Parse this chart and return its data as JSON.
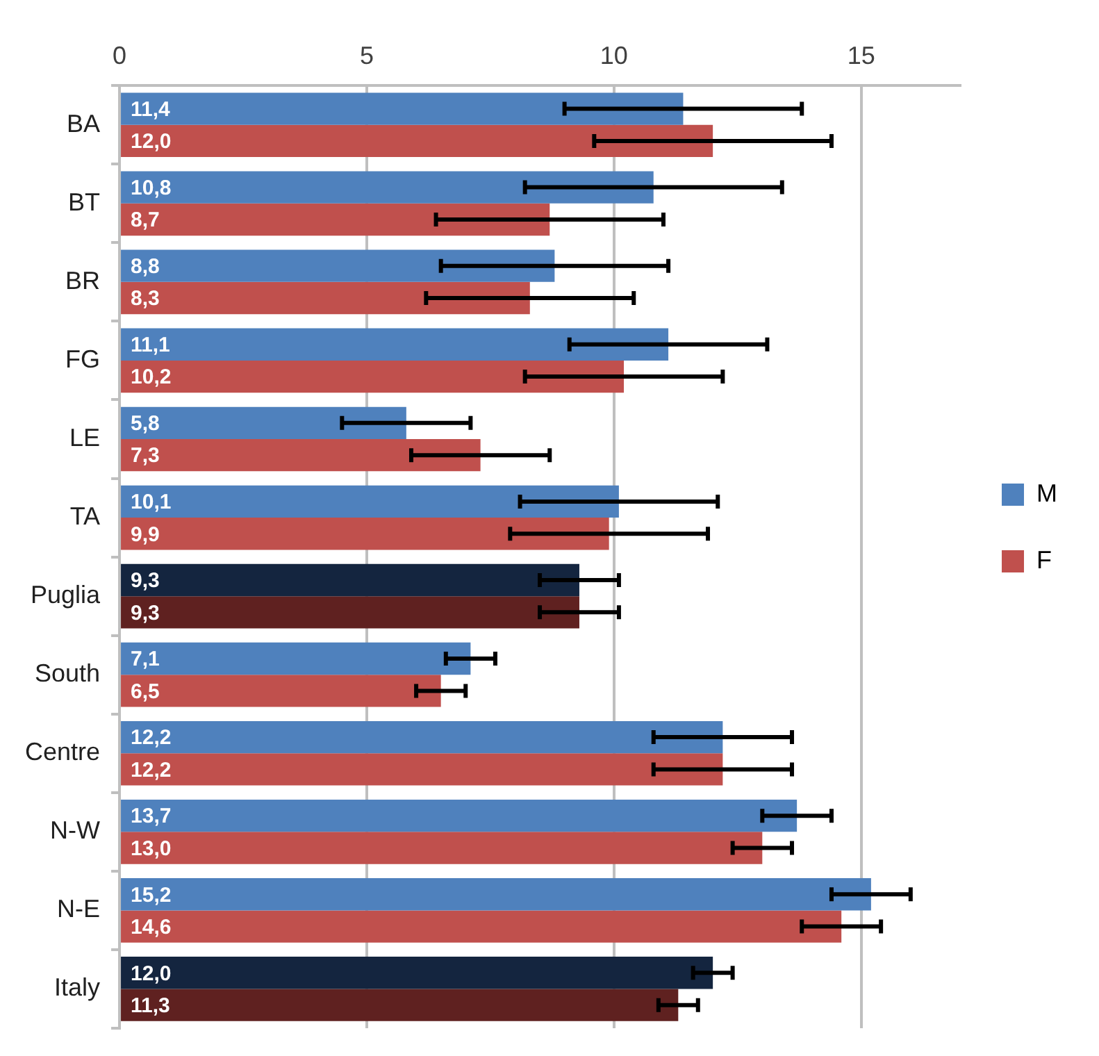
{
  "chart_data": {
    "type": "bar",
    "orientation": "horizontal",
    "categories": [
      "BA",
      "BT",
      "BR",
      "FG",
      "LE",
      "TA",
      "Puglia",
      "South",
      "Centre",
      "N-W",
      "N-E",
      "Italy"
    ],
    "series": [
      {
        "name": "M",
        "color": "#4f81bd",
        "colors": [
          "#4f81bd",
          "#4f81bd",
          "#4f81bd",
          "#4f81bd",
          "#4f81bd",
          "#4f81bd",
          "#14253f",
          "#4f81bd",
          "#4f81bd",
          "#4f81bd",
          "#4f81bd",
          "#14253f"
        ],
        "values": [
          11.4,
          10.8,
          8.8,
          11.1,
          5.8,
          10.1,
          9.3,
          7.1,
          12.2,
          13.7,
          15.2,
          12.0
        ],
        "value_labels": [
          "11,4",
          "10,8",
          "8,8",
          "11,1",
          "5,8",
          "10,1",
          "9,3",
          "7,1",
          "12,2",
          "13,7",
          "15,2",
          "12,0"
        ],
        "errors": [
          2.4,
          2.6,
          2.3,
          2.0,
          1.3,
          2.0,
          0.8,
          0.5,
          1.4,
          0.7,
          0.8,
          0.4
        ]
      },
      {
        "name": "F",
        "color": "#c0504d",
        "colors": [
          "#c0504d",
          "#c0504d",
          "#c0504d",
          "#c0504d",
          "#c0504d",
          "#c0504d",
          "#5f2120",
          "#c0504d",
          "#c0504d",
          "#c0504d",
          "#c0504d",
          "#5f2120"
        ],
        "values": [
          12.0,
          8.7,
          8.3,
          10.2,
          7.3,
          9.9,
          9.3,
          6.5,
          12.2,
          13.0,
          14.6,
          11.3
        ],
        "value_labels": [
          "12,0",
          "8,7",
          "8,3",
          "10,2",
          "7,3",
          "9,9",
          "9,3",
          "6,5",
          "12,2",
          "13,0",
          "14,6",
          "11,3"
        ],
        "errors": [
          2.4,
          2.3,
          2.1,
          2.0,
          1.4,
          2.0,
          0.8,
          0.5,
          1.4,
          0.6,
          0.8,
          0.4
        ]
      }
    ],
    "xlim": [
      0,
      17
    ],
    "xticks": [
      0,
      5,
      10,
      15
    ],
    "grid": "x",
    "legend": "right"
  }
}
